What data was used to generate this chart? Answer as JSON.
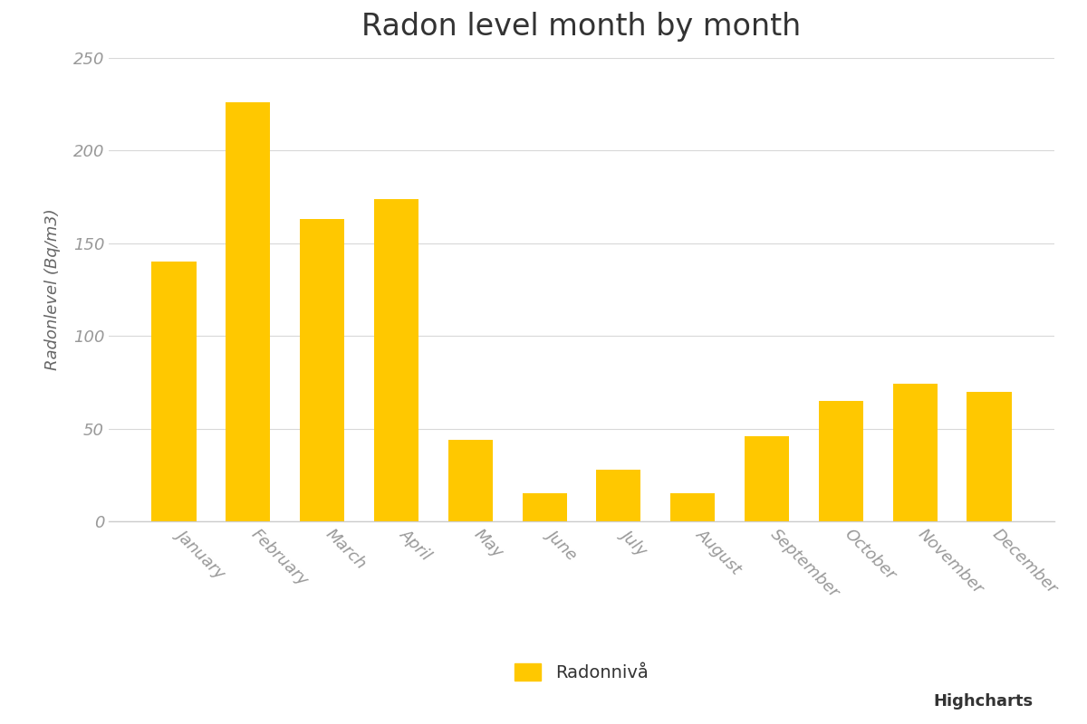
{
  "title": "Radon level month by month",
  "ylabel": "Radonlevel (Bq/m3)",
  "legend_label": "Radonnivå",
  "watermark": "Highcharts",
  "categories": [
    "January",
    "February",
    "March",
    "April",
    "May",
    "June",
    "July",
    "August",
    "September",
    "October",
    "November",
    "December"
  ],
  "values": [
    140,
    226,
    163,
    174,
    44,
    15,
    28,
    15,
    46,
    65,
    74,
    70
  ],
  "bar_color": "#FFC800",
  "background_color": "#FFFFFF",
  "ylim": [
    0,
    250
  ],
  "yticks": [
    0,
    50,
    100,
    150,
    200,
    250
  ],
  "grid_color": "#D8D8D8",
  "title_fontsize": 24,
  "axis_label_fontsize": 13,
  "tick_fontsize": 13,
  "legend_fontsize": 14,
  "watermark_fontsize": 13,
  "tick_color": "#999999",
  "label_color": "#666666"
}
